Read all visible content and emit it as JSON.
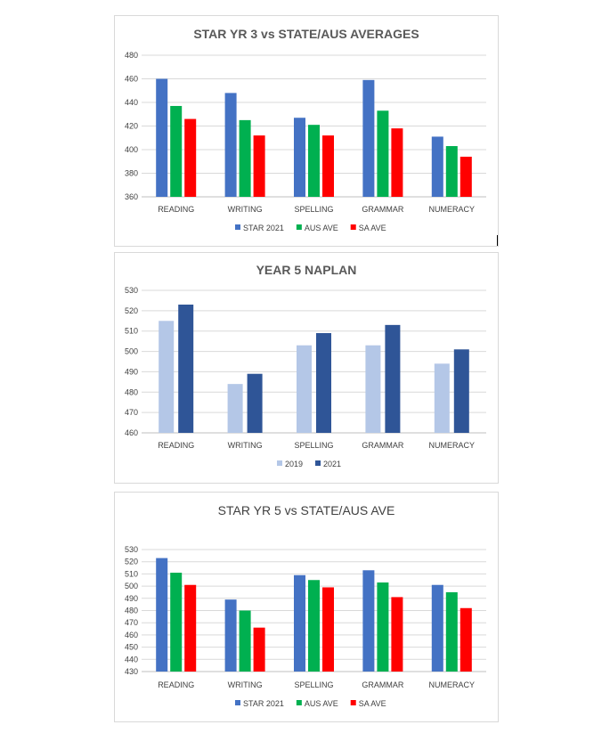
{
  "chart_data": [
    {
      "type": "bar",
      "title": "STAR YR 3 vs STATE/AUS AVERAGES",
      "categories": [
        "READING",
        "WRITING",
        "SPELLING",
        "GRAMMAR",
        "NUMERACY"
      ],
      "ylim": [
        360,
        480
      ],
      "yticks": [
        360,
        380,
        400,
        420,
        440,
        460,
        480
      ],
      "grid": true,
      "legend_position": "bottom",
      "series": [
        {
          "name": "STAR 2021",
          "color": "#4472C4",
          "values": [
            460,
            448,
            427,
            459,
            411
          ]
        },
        {
          "name": "AUS AVE",
          "color": "#00B050",
          "values": [
            437,
            425,
            421,
            433,
            403
          ]
        },
        {
          "name": "SA AVE",
          "color": "#FF0000",
          "values": [
            426,
            412,
            412,
            418,
            394
          ]
        }
      ]
    },
    {
      "type": "bar",
      "title": "YEAR 5 NAPLAN",
      "categories": [
        "READING",
        "WRITING",
        "SPELLING",
        "GRAMMAR",
        "NUMERACY"
      ],
      "ylim": [
        460,
        530
      ],
      "yticks": [
        460,
        470,
        480,
        490,
        500,
        510,
        520,
        530
      ],
      "grid": true,
      "legend_position": "bottom",
      "series": [
        {
          "name": "2019",
          "color": "#B4C7E7",
          "values": [
            515,
            484,
            503,
            503,
            494
          ]
        },
        {
          "name": "2021",
          "color": "#2F5597",
          "values": [
            523,
            489,
            509,
            513,
            501
          ]
        }
      ]
    },
    {
      "type": "bar",
      "title": "STAR YR 5 vs STATE/AUS AVE",
      "categories": [
        "READING",
        "WRITING",
        "SPELLING",
        "GRAMMAR",
        "NUMERACY"
      ],
      "ylim": [
        430,
        530
      ],
      "yticks": [
        430,
        440,
        450,
        460,
        470,
        480,
        490,
        500,
        510,
        520,
        530
      ],
      "grid": true,
      "legend_position": "bottom",
      "series": [
        {
          "name": "STAR 2021",
          "color": "#4472C4",
          "values": [
            523,
            489,
            509,
            513,
            501
          ]
        },
        {
          "name": "AUS AVE",
          "color": "#00B050",
          "values": [
            511,
            480,
            505,
            503,
            495
          ]
        },
        {
          "name": "SA AVE",
          "color": "#FF0000",
          "values": [
            501,
            466,
            499,
            491,
            482
          ]
        }
      ]
    }
  ]
}
